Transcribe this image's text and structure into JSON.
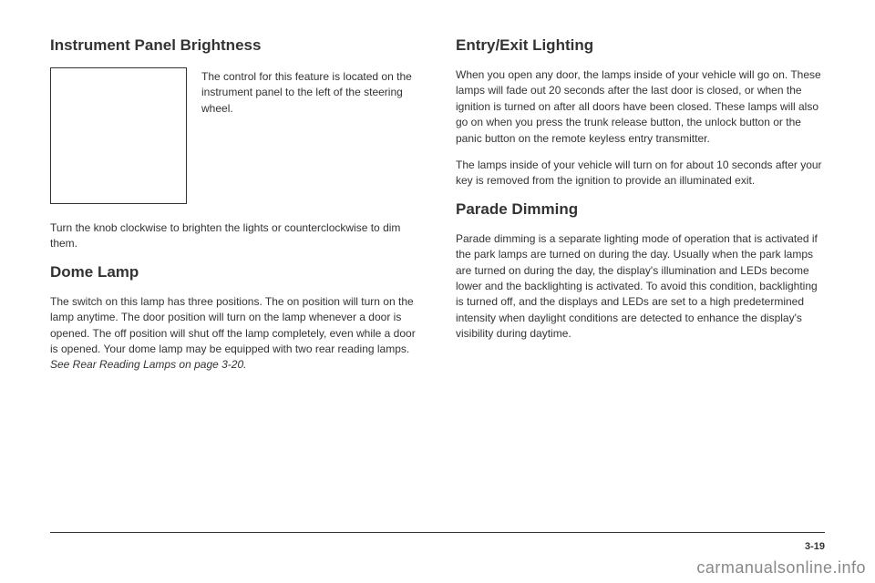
{
  "left": {
    "h1": "Instrument Panel Brightness",
    "imgCaption": "The control for this feature is located on the instrument panel to the left of the steering wheel.",
    "p1": "Turn the knob clockwise to brighten the lights or counterclockwise to dim them.",
    "h2": "Dome Lamp",
    "p2a": "The switch on this lamp has three positions. The on position will turn on the lamp anytime. The door position will turn on the lamp whenever a door is opened. The off position will shut off the lamp completely, even while a door is opened. Your dome lamp may be equipped with two rear reading lamps. ",
    "p2b": "See Rear Reading Lamps on page 3-20."
  },
  "right": {
    "h1": "Entry/Exit Lighting",
    "p1": "When you open any door, the lamps inside of your vehicle will go on. These lamps will fade out 20 seconds after the last door is closed, or when the ignition is turned on after all doors have been closed. These lamps will also go on when you press the trunk release button, the unlock button or the panic button on the remote keyless entry transmitter.",
    "p2": "The lamps inside of your vehicle will turn on for about 10 seconds after your key is removed from the ignition to provide an illuminated exit.",
    "h2": "Parade Dimming",
    "p3": "Parade dimming is a separate lighting mode of operation that is activated if the park lamps are turned on during the day. Usually when the park lamps are turned on during the day, the display's illumination and LEDs become lower and the backlighting is activated. To avoid this condition, backlighting is turned off, and the displays and LEDs are set to a high predetermined intensity when daylight conditions are detected to enhance the display's visibility during daytime."
  },
  "pageNum": "3-19",
  "watermark": "carmanualsonline.info"
}
